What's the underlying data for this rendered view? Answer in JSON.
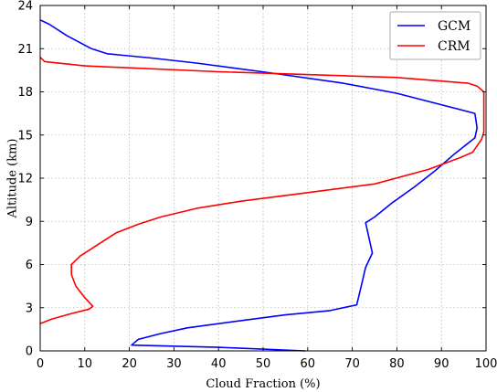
{
  "chart_data": {
    "type": "line",
    "title": "",
    "xlabel": "Cloud Fraction (%)",
    "ylabel": "Altitude (km)",
    "xlim": [
      0,
      100
    ],
    "ylim": [
      0,
      24
    ],
    "xticks": [
      0,
      10,
      20,
      30,
      40,
      50,
      60,
      70,
      80,
      90,
      100
    ],
    "yticks": [
      0,
      3,
      6,
      9,
      12,
      15,
      18,
      21,
      24
    ],
    "grid": true,
    "legend_position": "top-right",
    "series": [
      {
        "name": "GCM",
        "color": "#0000ff",
        "points": [
          [
            59.5,
            0.0
          ],
          [
            40.0,
            0.25
          ],
          [
            20.5,
            0.4
          ],
          [
            22.0,
            0.8
          ],
          [
            27.0,
            1.2
          ],
          [
            33.0,
            1.6
          ],
          [
            45.0,
            2.1
          ],
          [
            55.0,
            2.5
          ],
          [
            65.0,
            2.8
          ],
          [
            71.0,
            3.2
          ],
          [
            72.0,
            4.5
          ],
          [
            73.0,
            5.8
          ],
          [
            74.5,
            6.8
          ],
          [
            74.0,
            7.5
          ],
          [
            73.5,
            8.2
          ],
          [
            73.0,
            8.9
          ],
          [
            75.0,
            9.3
          ],
          [
            79.0,
            10.3
          ],
          [
            84.0,
            11.4
          ],
          [
            88.5,
            12.5
          ],
          [
            93.0,
            13.7
          ],
          [
            97.5,
            14.8
          ],
          [
            98.0,
            15.5
          ],
          [
            97.5,
            16.5
          ],
          [
            80.0,
            17.9
          ],
          [
            68.0,
            18.6
          ],
          [
            52.0,
            19.3
          ],
          [
            35.0,
            20.0
          ],
          [
            25.0,
            20.35
          ],
          [
            15.0,
            20.65
          ],
          [
            11.5,
            21.0
          ],
          [
            6.0,
            21.9
          ],
          [
            2.0,
            22.7
          ],
          [
            0.0,
            23.0
          ]
        ]
      },
      {
        "name": "CRM",
        "color": "#ff0000",
        "points": [
          [
            0.0,
            1.9
          ],
          [
            2.5,
            2.2
          ],
          [
            7.0,
            2.6
          ],
          [
            11.0,
            2.9
          ],
          [
            11.8,
            3.1
          ],
          [
            10.0,
            3.7
          ],
          [
            8.0,
            4.5
          ],
          [
            7.0,
            5.3
          ],
          [
            7.0,
            6.0
          ],
          [
            9.0,
            6.6
          ],
          [
            11.0,
            7.0
          ],
          [
            14.0,
            7.6
          ],
          [
            17.0,
            8.2
          ],
          [
            22.0,
            8.8
          ],
          [
            27.0,
            9.3
          ],
          [
            35.0,
            9.9
          ],
          [
            45.0,
            10.4
          ],
          [
            60.0,
            11.0
          ],
          [
            75.0,
            11.6
          ],
          [
            87.0,
            12.6
          ],
          [
            94.0,
            13.4
          ],
          [
            97.0,
            13.8
          ],
          [
            99.0,
            14.7
          ],
          [
            99.5,
            15.2
          ],
          [
            99.5,
            16.5
          ],
          [
            99.5,
            18.0
          ],
          [
            98.0,
            18.4
          ],
          [
            96.0,
            18.6
          ],
          [
            80.0,
            19.0
          ],
          [
            40.0,
            19.4
          ],
          [
            10.0,
            19.8
          ],
          [
            1.0,
            20.1
          ],
          [
            0.0,
            20.4
          ]
        ]
      }
    ]
  }
}
